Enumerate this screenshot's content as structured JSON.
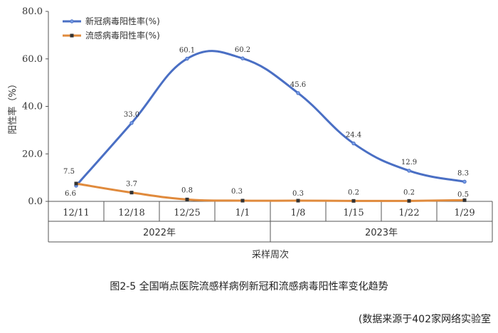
{
  "chart_data": {
    "type": "line",
    "categories": [
      "12/11",
      "12/18",
      "12/25",
      "1/1",
      "1/8",
      "1/15",
      "1/22",
      "1/29"
    ],
    "year_groups": [
      {
        "label": "2022年",
        "categories": [
          "12/11",
          "12/18",
          "12/25",
          "1/1"
        ]
      },
      {
        "label": "2023年",
        "categories": [
          "1/8",
          "1/15",
          "1/22",
          "1/29"
        ]
      }
    ],
    "series": [
      {
        "name": "新冠病毒阳性率(%)",
        "color": "#4a6fc4",
        "values": [
          6.6,
          33.0,
          60.1,
          60.2,
          45.6,
          24.4,
          12.9,
          8.3
        ],
        "labels": [
          "6.6",
          "33.0",
          "60.1",
          "60.2",
          "45.6",
          "24.4",
          "12.9",
          "8.3"
        ]
      },
      {
        "name": "流感病毒阳性率(%)",
        "color": "#e08a3c",
        "values": [
          7.5,
          3.7,
          0.8,
          0.3,
          0.3,
          0.2,
          0.2,
          0.5
        ],
        "labels": [
          "7.5",
          "3.7",
          "0.8",
          "0.3",
          "0.3",
          "0.2",
          "0.2",
          "0.5"
        ]
      }
    ],
    "y_ticks": [
      "0.0",
      "20.0",
      "40.0",
      "60.0",
      "80.0"
    ],
    "ylim": [
      0,
      80
    ],
    "xlabel": "采样周次",
    "ylabel": "阳性率（%）",
    "legend_position": "top-left",
    "grid": false
  },
  "caption": "图2-5 全国哨点医院流感样病例新冠和流感病毒阳性率变化趋势",
  "source": "(数据来源于402家网络实验室"
}
